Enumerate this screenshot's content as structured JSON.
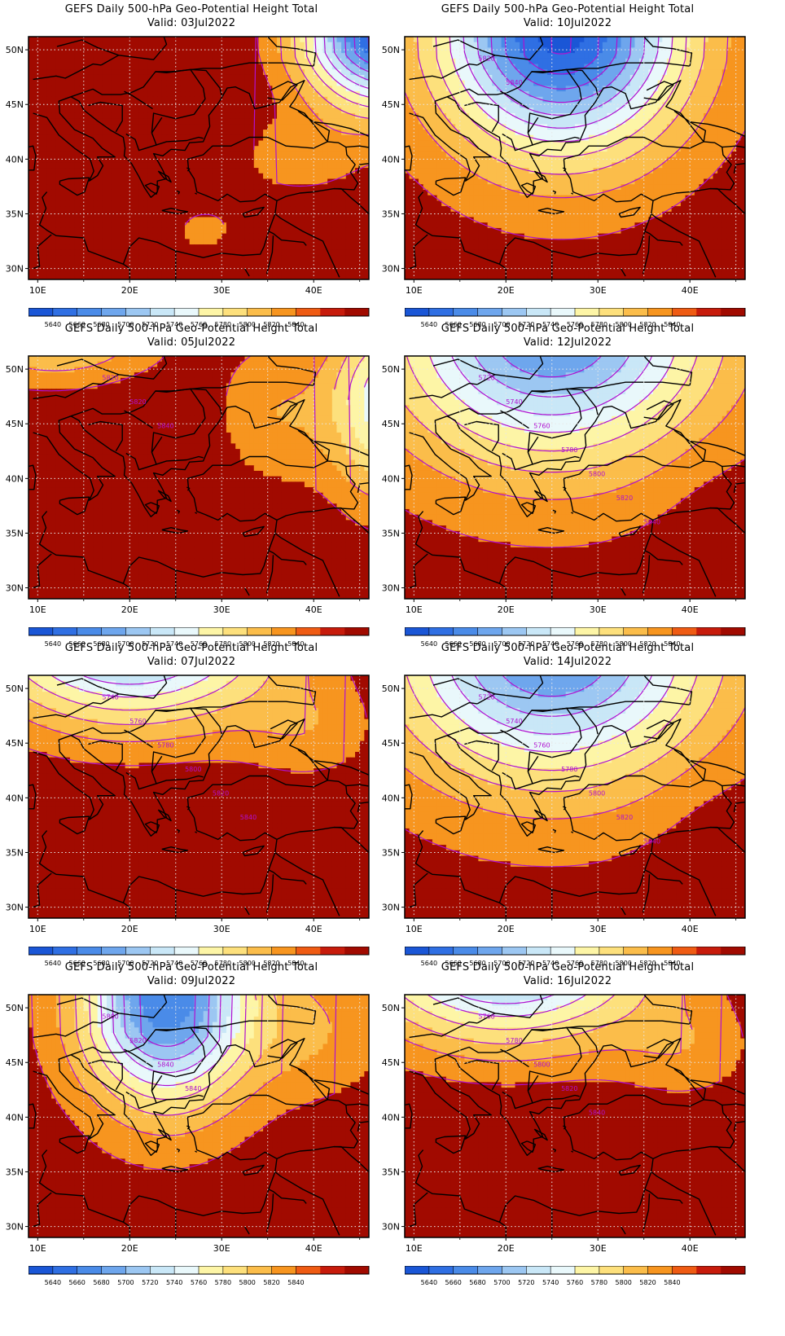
{
  "figure": {
    "title": "GEFS Daily 500-hPa Geo-Potential Height Total",
    "valid_prefix": "Valid:",
    "lat_ticks": [
      "50N",
      "45N",
      "40N",
      "35N",
      "30N"
    ],
    "lon_ticks": [
      "10E",
      "20E",
      "30E",
      "40E"
    ],
    "colorbar": {
      "levels": [
        "5640",
        "5660",
        "5680",
        "5700",
        "5720",
        "5740",
        "5760",
        "5780",
        "5800",
        "5820",
        "5840"
      ],
      "colors": [
        "#1a56d6",
        "#2f6fe3",
        "#4a8be8",
        "#6ea6ed",
        "#9cc7f2",
        "#c9e7f7",
        "#e9f8fb",
        "#fdf5a6",
        "#fde07c",
        "#fbbd4a",
        "#f7951f",
        "#ef5b13",
        "#c71b0b",
        "#a10a00"
      ]
    },
    "contour_color": "#b010d0",
    "panels": [
      {
        "valid": "03Jul2022",
        "scenario": "ridge-with-northeast-trough",
        "contour_labels": []
      },
      {
        "valid": "05Jul2022",
        "scenario": "strong-ridge",
        "contour_labels": [
          "5820",
          "5820",
          "5840"
        ]
      },
      {
        "valid": "07Jul2022",
        "scenario": "north-trough-weak",
        "contour_labels": [
          "5740",
          "5760",
          "5780",
          "5800",
          "5820",
          "5840"
        ]
      },
      {
        "valid": "09Jul2022",
        "scenario": "deep-trough-central",
        "contour_labels": [
          "5800",
          "5820",
          "5840",
          "5840"
        ]
      },
      {
        "valid": "10Jul2022",
        "scenario": "deep-trough-east",
        "contour_labels": [
          "5820",
          "5840"
        ]
      },
      {
        "valid": "12Jul2022",
        "scenario": "north-trough-strong",
        "contour_labels": [
          "5720",
          "5740",
          "5760",
          "5780",
          "5800",
          "5820",
          "5840"
        ]
      },
      {
        "valid": "14Jul2022",
        "scenario": "north-trough-strong",
        "contour_labels": [
          "5720",
          "5740",
          "5760",
          "5780",
          "5800",
          "5820",
          "5840"
        ]
      },
      {
        "valid": "16Jul2022",
        "scenario": "north-trough-weak",
        "contour_labels": [
          "5760",
          "5780",
          "5800",
          "5820",
          "5840"
        ]
      }
    ]
  }
}
